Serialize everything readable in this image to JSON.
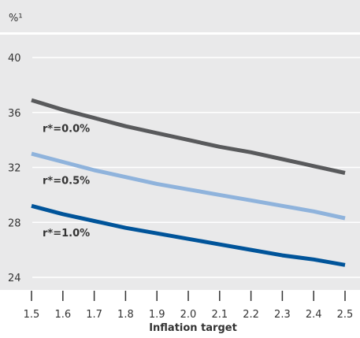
{
  "chart_data": {
    "type": "line",
    "title": "",
    "ylabel": "%¹",
    "xlabel": "Inflation target",
    "x": [
      1.5,
      1.6,
      1.7,
      1.8,
      1.9,
      2.0,
      2.1,
      2.2,
      2.3,
      2.4,
      2.5
    ],
    "x_tick_labels": [
      "1.5",
      "1.6",
      "1.7",
      "1.8",
      "1.9",
      "2.0",
      "2.1",
      "2.2",
      "2.3",
      "2.4",
      "2.5"
    ],
    "xlim": [
      1.5,
      2.5
    ],
    "ylim": [
      24,
      40
    ],
    "yticks": [
      24,
      28,
      32,
      36,
      40
    ],
    "y_tick_labels": [
      "24",
      "28",
      "32",
      "36",
      "40"
    ],
    "grid": true,
    "series": [
      {
        "name": "r*=0.0%",
        "color": "#595a5c",
        "values": [
          36.9,
          36.2,
          35.6,
          35.0,
          34.5,
          34.0,
          33.5,
          33.1,
          32.6,
          32.1,
          31.6
        ]
      },
      {
        "name": "r*=0.5%",
        "color": "#8fb3dc",
        "values": [
          33.0,
          32.4,
          31.8,
          31.3,
          30.8,
          30.4,
          30.0,
          29.6,
          29.2,
          28.8,
          28.3
        ]
      },
      {
        "name": "r*=1.0%",
        "color": "#00549a",
        "values": [
          29.2,
          28.6,
          28.1,
          27.6,
          27.2,
          26.8,
          26.4,
          26.0,
          25.6,
          25.3,
          24.9
        ]
      }
    ]
  },
  "colors": {
    "plot_background": "#e9e9ea",
    "gridline": "#ffffff",
    "text": "#333333"
  }
}
